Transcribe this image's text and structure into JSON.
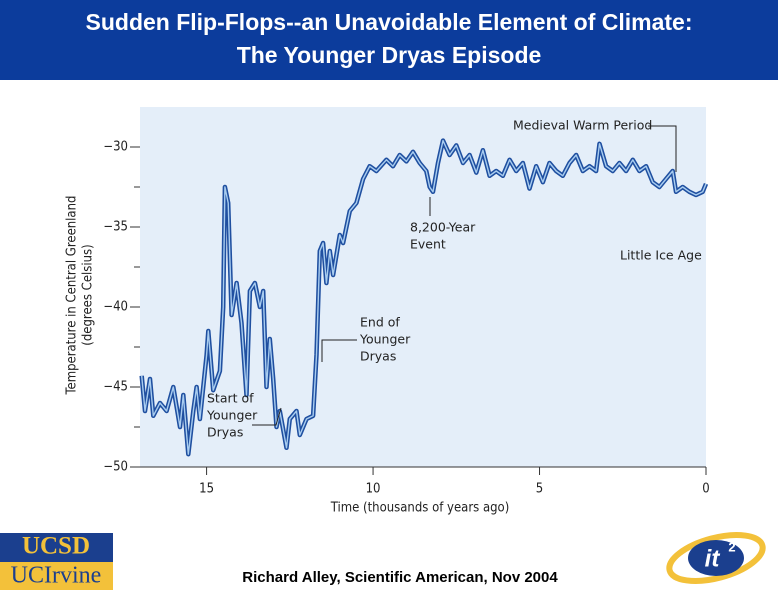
{
  "slide": {
    "title": [
      "Sudden Flip-Flops--an Unavoidable Element of Climate:",
      "The Younger Dryas Episode"
    ],
    "credit": "Richard Alley, Scientific American, Nov 2004",
    "logos": {
      "ucsd": "UCSD",
      "uci": "UCIrvine",
      "it": "it",
      "it_sup": "2"
    }
  },
  "chart_data": {
    "type": "line",
    "x_label": "Time (thousands of years ago)",
    "y_label": [
      "Temperature in Central Greenland",
      "(degrees Celsius)"
    ],
    "xlim": [
      17,
      0
    ],
    "xticks": [
      15,
      10,
      5,
      0
    ],
    "ylim": [
      -50,
      -27.5
    ],
    "yticks": [
      {
        "value": -30,
        "label": "−30"
      },
      {
        "value": -35,
        "label": "−35"
      },
      {
        "value": -40,
        "label": "−40"
      },
      {
        "value": -45,
        "label": "−45"
      },
      {
        "value": -50,
        "label": "−50"
      }
    ],
    "yminor": [
      -32.5,
      -37.5,
      -42.5,
      -47.5
    ],
    "annotations": [
      {
        "lines": [
          "Medieval Warm Period"
        ]
      },
      {
        "lines": [
          "8,200-Year",
          "Event"
        ]
      },
      {
        "lines": [
          "Little Ice Age"
        ]
      },
      {
        "lines": [
          "End of",
          "Younger",
          "Dryas"
        ]
      },
      {
        "lines": [
          "Start of",
          "Younger",
          "Dryas"
        ]
      }
    ],
    "series": [
      {
        "color": "#1f4fa0",
        "x": [
          16.95,
          16.85,
          16.7,
          16.6,
          16.4,
          16.2,
          16.0,
          15.8,
          15.7,
          15.55,
          15.4,
          15.3,
          15.2,
          15.0,
          14.95,
          14.8,
          14.6,
          14.5,
          14.45,
          14.35,
          14.25,
          14.1,
          13.95,
          13.8,
          13.7,
          13.55,
          13.4,
          13.3,
          13.2,
          13.1,
          13.0,
          12.9,
          12.8,
          12.6,
          12.5,
          12.3,
          12.2,
          12.0,
          11.8,
          11.7,
          11.6,
          11.5,
          11.4,
          11.3,
          11.2,
          11.0,
          10.9,
          10.7,
          10.5,
          10.3,
          10.1,
          9.9,
          9.6,
          9.4,
          9.2,
          9.0,
          8.8,
          8.6,
          8.4,
          8.3,
          8.2,
          8.05,
          7.9,
          7.7,
          7.5,
          7.3,
          7.1,
          6.9,
          6.7,
          6.5,
          6.3,
          6.1,
          5.9,
          5.7,
          5.5,
          5.3,
          5.1,
          4.9,
          4.7,
          4.5,
          4.3,
          4.1,
          3.9,
          3.7,
          3.5,
          3.3,
          3.2,
          3.0,
          2.8,
          2.6,
          2.4,
          2.2,
          2.0,
          1.8,
          1.6,
          1.4,
          1.2,
          1.0,
          0.9,
          0.7,
          0.5,
          0.3,
          0.1,
          0.0
        ],
        "values": [
          -44.3,
          -46.5,
          -44.5,
          -46.8,
          -46.0,
          -46.5,
          -45.0,
          -47.5,
          -45.5,
          -49.2,
          -46.5,
          -45.0,
          -47.0,
          -43.0,
          -41.5,
          -45.2,
          -44.0,
          -40.0,
          -32.5,
          -33.5,
          -40.5,
          -38.5,
          -41.0,
          -45.5,
          -39.0,
          -38.5,
          -40.0,
          -39.0,
          -45.0,
          -42.0,
          -44.5,
          -47.5,
          -46.5,
          -48.8,
          -47.0,
          -46.5,
          -48.0,
          -47.0,
          -46.8,
          -43.0,
          -36.5,
          -36.0,
          -38.5,
          -36.5,
          -38.0,
          -35.5,
          -36.0,
          -34.0,
          -33.5,
          -32.0,
          -31.2,
          -31.5,
          -30.8,
          -31.2,
          -30.5,
          -30.9,
          -30.3,
          -31.0,
          -31.5,
          -32.5,
          -32.8,
          -31.0,
          -29.6,
          -30.5,
          -29.9,
          -31.0,
          -30.5,
          -31.6,
          -30.2,
          -31.8,
          -31.5,
          -31.8,
          -30.8,
          -31.5,
          -31.0,
          -32.6,
          -31.2,
          -32.2,
          -31.0,
          -31.5,
          -31.8,
          -31.0,
          -30.5,
          -31.5,
          -31.2,
          -31.5,
          -29.8,
          -31.2,
          -31.5,
          -31.0,
          -31.5,
          -30.8,
          -31.5,
          -31.2,
          -32.2,
          -32.5,
          -32.0,
          -31.5,
          -32.8,
          -32.5,
          -32.8,
          -33.0,
          -32.8,
          -32.3
        ]
      }
    ]
  }
}
